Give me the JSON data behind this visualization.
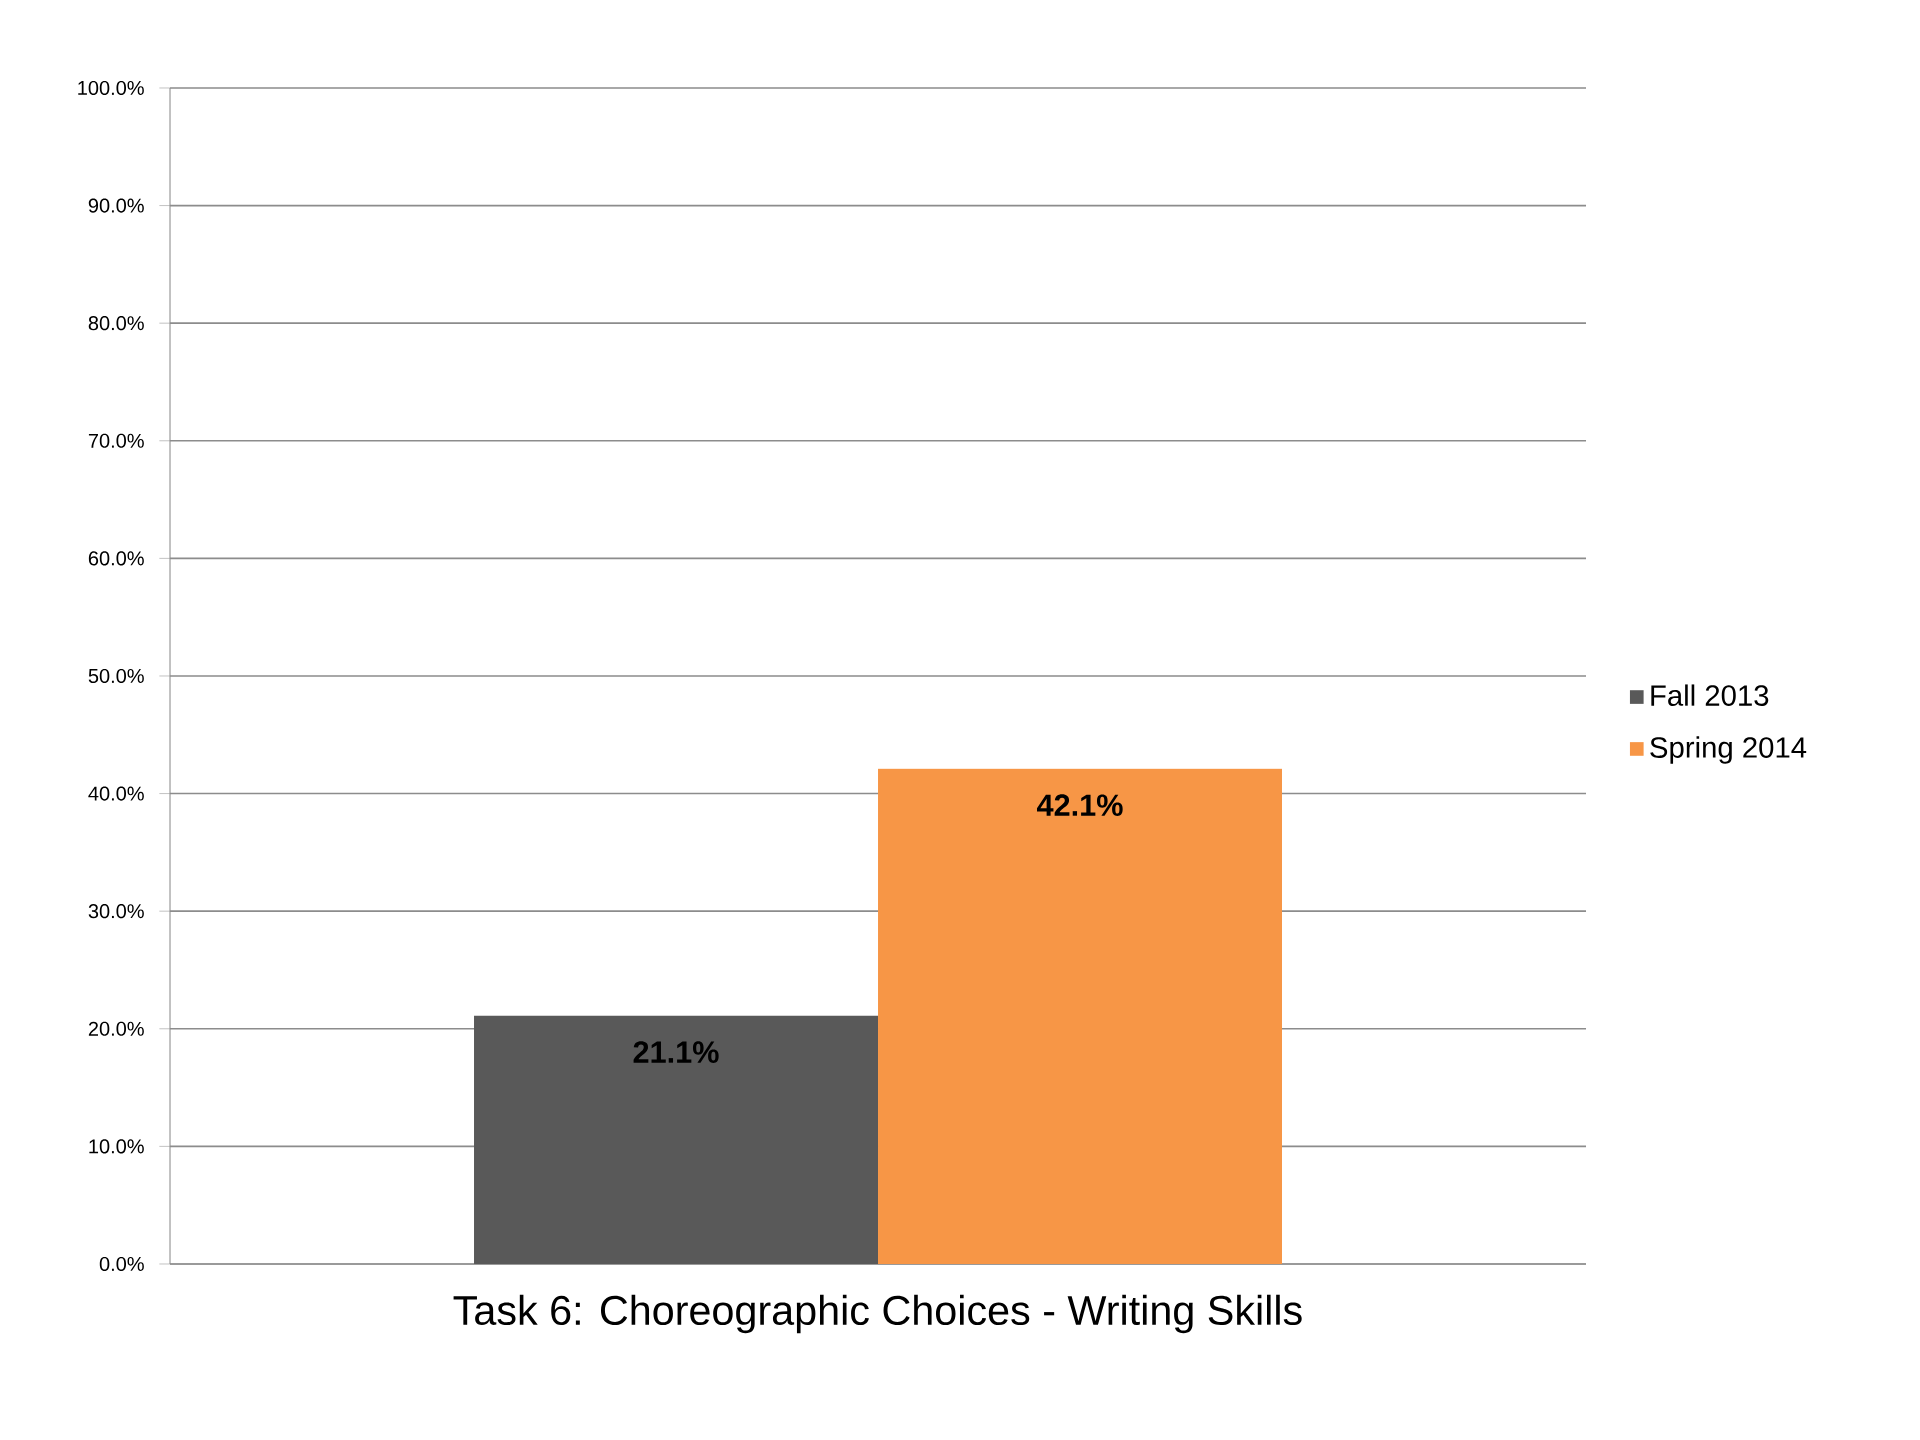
{
  "chart_data": {
    "type": "bar",
    "categories": [
      "Task 6: Choreographic Choices - Writing Skills"
    ],
    "series": [
      {
        "name": "Fall 2013",
        "color": "#595959",
        "values": [
          21.1
        ],
        "value_labels": [
          "21.1%"
        ]
      },
      {
        "name": "Spring 2014",
        "color": "#f79646",
        "values": [
          42.1
        ],
        "value_labels": [
          "42.1%"
        ]
      }
    ],
    "ylim": [
      0,
      100
    ],
    "yticks": [
      {
        "value": 0,
        "label": "0.0%"
      },
      {
        "value": 10,
        "label": "10.0%"
      },
      {
        "value": 20,
        "label": "20.0%"
      },
      {
        "value": 30,
        "label": "30.0%"
      },
      {
        "value": 40,
        "label": "40.0%"
      },
      {
        "value": 50,
        "label": "50.0%"
      },
      {
        "value": 60,
        "label": "60.0%"
      },
      {
        "value": 70,
        "label": "70.0%"
      },
      {
        "value": 80,
        "label": "80.0%"
      },
      {
        "value": 90,
        "label": "90.0%"
      },
      {
        "value": 100,
        "label": "100.0%"
      }
    ],
    "grid": "y",
    "legend": "right"
  }
}
